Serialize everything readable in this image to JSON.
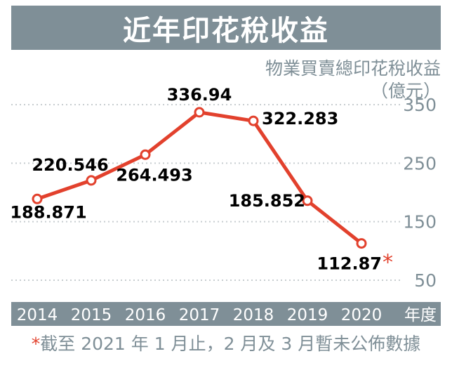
{
  "chart_data": {
    "type": "line",
    "title": "近年印花稅收益",
    "ylabel_line1": "物業買賣總印花稅收益",
    "ylabel_line2": "（億元）",
    "xlabel": "年度",
    "x": [
      "2014",
      "2015",
      "2016",
      "2017",
      "2018",
      "2019",
      "2020"
    ],
    "series": [
      {
        "values": [
          188.871,
          220.546,
          264.493,
          336.94,
          322.283,
          185.852,
          112.87
        ],
        "labels": [
          "188.871",
          "220.546",
          "264.493",
          "336.94",
          "322.283",
          "185.852",
          "112.87"
        ]
      }
    ],
    "yticks": [
      "350",
      "250",
      "150",
      "50"
    ],
    "ytick_values": [
      350,
      250,
      150,
      50
    ],
    "ylim": [
      50,
      350
    ],
    "grid": true,
    "line_color": "#e2412d",
    "grid_color": "#c7cdd0",
    "label_color": "#000000",
    "axis_color": "#7f8f97",
    "asterisk": "*"
  },
  "footnote": {
    "star": "*",
    "text": "截至 2021 年 1 月止，2 月及 3 月暫未公佈數據"
  }
}
